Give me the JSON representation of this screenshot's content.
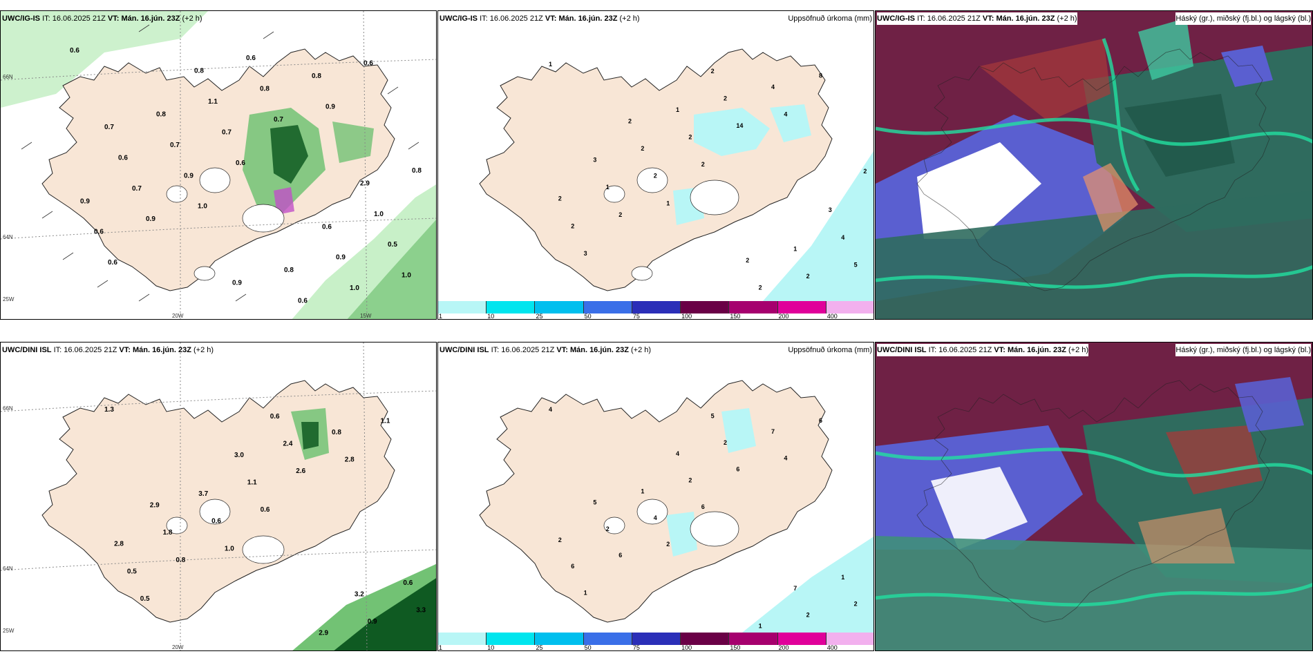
{
  "panels": [
    {
      "model": "UWC/IG-IS",
      "it_label": "IT:",
      "it_value": "16.06.2025 21Z",
      "vt_label": "VT:",
      "vt_value": "Mán. 16.jún. 23Z",
      "offset": "(+2 h)",
      "right_label": ""
    },
    {
      "model": "UWC/IG-IS",
      "it_label": "IT:",
      "it_value": "16.06.2025 21Z",
      "vt_label": "VT:",
      "vt_value": "Mán. 16.jún. 23Z",
      "offset": "(+2 h)",
      "right_label": "Uppsöfnuð úrkoma (mm)"
    },
    {
      "model": "UWC/IG-IS",
      "it_label": "IT:",
      "it_value": "16.06.2025 21Z",
      "vt_label": "VT:",
      "vt_value": "Mán. 16.jún. 23Z",
      "offset": "(+2 h)",
      "right_label": "Háský (gr.), miðský (fj.bl.) og lágský (bl.)"
    },
    {
      "model": "UWC/DINI ISL",
      "it_label": "IT:",
      "it_value": "16.06.2025 21Z",
      "vt_label": "VT:",
      "vt_value": "Mán. 16.jún. 23Z",
      "offset": "(+2 h)",
      "right_label": ""
    },
    {
      "model": "UWC/DINI ISL",
      "it_label": "IT:",
      "it_value": "16.06.2025 21Z",
      "vt_label": "VT:",
      "vt_value": "Mán. 16.jún. 23Z",
      "offset": "(+2 h)",
      "right_label": "Uppsöfnuð úrkoma (mm)"
    },
    {
      "model": "UWC/DINI ISL",
      "it_label": "IT:",
      "it_value": "16.06.2025 21Z",
      "vt_label": "VT:",
      "vt_value": "Mán. 16.jún. 23Z",
      "offset": "(+2 h)",
      "right_label": "Háský (gr.), miðský (fj.bl.) og lágský (bl.)"
    }
  ],
  "grid_labels": {
    "lat66": "66N",
    "lat64": "64N",
    "lon20": "20W",
    "lon15": "15W",
    "lon25": "25W"
  },
  "colorbar": {
    "ticks": [
      "1",
      "10",
      "25",
      "50",
      "75",
      "100",
      "150",
      "200",
      "400"
    ],
    "colors": [
      "#b8f6f6",
      "#00e5ee",
      "#00bfee",
      "#3a6fe8",
      "#2b2fb8",
      "#6a0046",
      "#a6006e",
      "#e0009a",
      "#f2b0ee"
    ]
  },
  "colors": {
    "land": "#f8e6d6",
    "snow": "#ffffff",
    "precip_light": "#c8f0c8",
    "precip_mid": "#72c274",
    "precip_dark": "#0f5a22",
    "acc_light": "#b8f6f6",
    "cloud_high": "#6f2145",
    "cloud_mid": "#3f8f7a",
    "cloud_low": "#5a5fd0"
  },
  "precip_values_top": [
    "0.6",
    "1.0",
    "0.9",
    "0.6",
    "0.6",
    "0.6",
    "0.9",
    "0.7",
    "1.0",
    "0.9",
    "0.8",
    "0.6",
    "0.7",
    "1.0",
    "0.7",
    "0.8",
    "0.5",
    "0.7",
    "0.6",
    "0.9",
    "1.1",
    "0.9",
    "0.6",
    "0.6",
    "1.0",
    "0.8",
    "0.8",
    "0.8",
    "0.8",
    "0.6",
    "0.7",
    "0.9",
    "2.9"
  ],
  "precip_values_bottom": [
    "1.3",
    "1.0",
    "2.8",
    "0.5",
    "0.6",
    "1.1",
    "0.8",
    "2.6",
    "3.3",
    "0.6",
    "0.8",
    "0.5",
    "1.1",
    "0.9",
    "1.8",
    "2.4",
    "0.6",
    "3.7",
    "2.9",
    "2.8",
    "3.0",
    "3.2",
    "2.9",
    "0.6"
  ],
  "acc_values_top": [
    "1",
    "1",
    "4",
    "3",
    "2",
    "8",
    "2",
    "14",
    "5",
    "2",
    "4",
    "2",
    "2",
    "2",
    "1",
    "2",
    "4",
    "2",
    "2",
    "2",
    "1",
    "1",
    "3",
    "2",
    "3",
    "2",
    "2",
    "2"
  ],
  "acc_values_bottom": [
    "4",
    "2",
    "4",
    "1",
    "6",
    "6",
    "6",
    "6",
    "2",
    "4",
    "7",
    "6",
    "2",
    "2",
    "2",
    "2",
    "1",
    "1",
    "1",
    "2",
    "4",
    "7",
    "5",
    "5"
  ]
}
